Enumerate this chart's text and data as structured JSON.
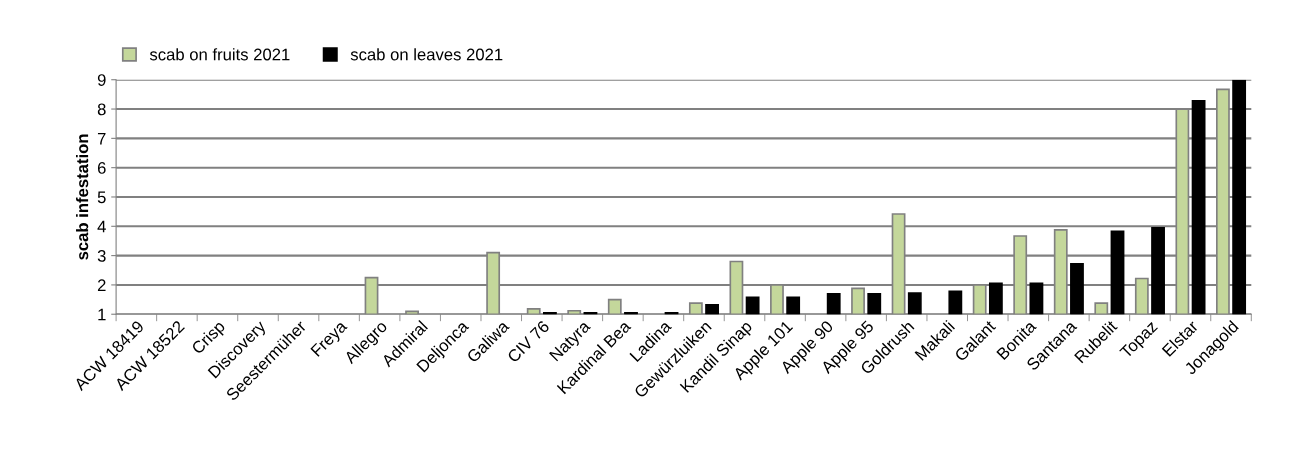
{
  "chart_data": {
    "type": "bar",
    "ylabel": "scab infestation",
    "categories": [
      "ACW 18419",
      "ACW 18522",
      "Crisp",
      "Discovery",
      "Seestermüher",
      "Freya",
      "Allegro",
      "Admiral",
      "Deljonca",
      "Galiwa",
      "CIV 76",
      "Natyra",
      "Kardinal Bea",
      "Ladina",
      "Gewürzluiken",
      "Kandil Sinap",
      "Apple 101",
      "Apple 90",
      "Apple 95",
      "Goldrush",
      "Makali",
      "Galant",
      "Bonita",
      "Santana",
      "Rubelit",
      "Topaz",
      "Elstar",
      "Jonagold"
    ],
    "series": [
      {
        "name": "scab on fruits 2021",
        "color": "#c4d79b",
        "values": [
          null,
          null,
          null,
          null,
          null,
          null,
          2.25,
          1.1,
          null,
          3.1,
          1.18,
          1.12,
          1.5,
          null,
          1.38,
          2.8,
          2.0,
          null,
          1.88,
          4.42,
          null,
          2.0,
          3.67,
          3.88,
          1.38,
          2.22,
          8.0,
          8.67
        ]
      },
      {
        "name": "scab on leaves 2021",
        "color": "#000000",
        "values": [
          null,
          null,
          null,
          null,
          null,
          null,
          null,
          null,
          null,
          null,
          1.05,
          1.05,
          1.05,
          1.05,
          1.32,
          1.58,
          1.58,
          1.7,
          1.7,
          1.72,
          1.78,
          2.05,
          2.05,
          2.72,
          3.83,
          3.95,
          8.28,
          8.97
        ]
      }
    ],
    "ylim": [
      1,
      9
    ],
    "yticks": [
      1,
      2,
      3,
      4,
      5,
      6,
      7,
      8,
      9
    ],
    "grid": "y",
    "legend": "top left"
  }
}
